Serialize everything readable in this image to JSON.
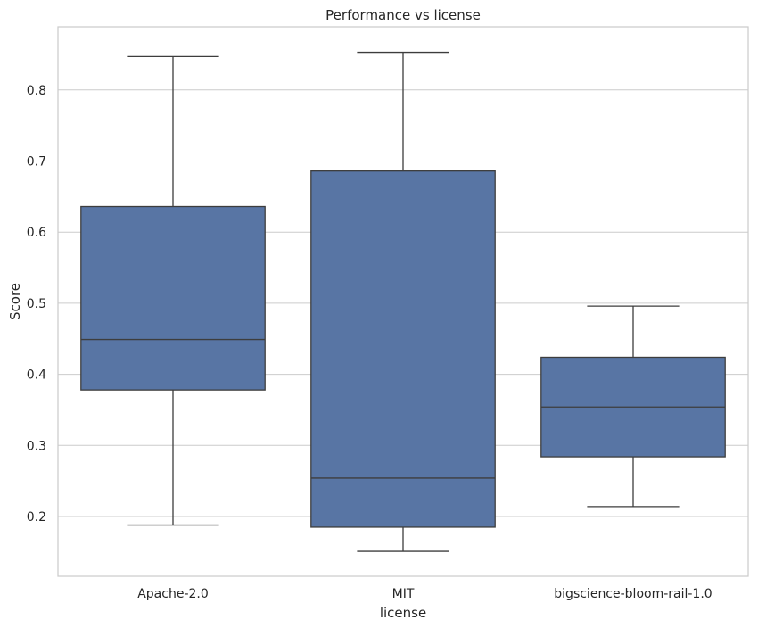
{
  "chart_data": {
    "type": "box",
    "title": "Performance vs license",
    "xlabel": "license",
    "ylabel": "Score",
    "ylim": [
      0.12,
      0.89
    ],
    "yticks": [
      0.2,
      0.3,
      0.4,
      0.5,
      0.6,
      0.7,
      0.8
    ],
    "grid": "horizontal",
    "box_color": "#5875a4",
    "categories": [
      "Apache-2.0",
      "MIT",
      "bigscience-bloom-rail-1.0"
    ],
    "boxes": [
      {
        "category": "Apache-2.0",
        "whisker_low": 0.188,
        "q1": 0.378,
        "median": 0.449,
        "q3": 0.636,
        "whisker_high": 0.847
      },
      {
        "category": "MIT",
        "whisker_low": 0.151,
        "q1": 0.185,
        "median": 0.254,
        "q3": 0.686,
        "whisker_high": 0.853
      },
      {
        "category": "bigscience-bloom-rail-1.0",
        "whisker_low": 0.214,
        "q1": 0.284,
        "median": 0.354,
        "q3": 0.424,
        "whisker_high": 0.496
      }
    ]
  }
}
